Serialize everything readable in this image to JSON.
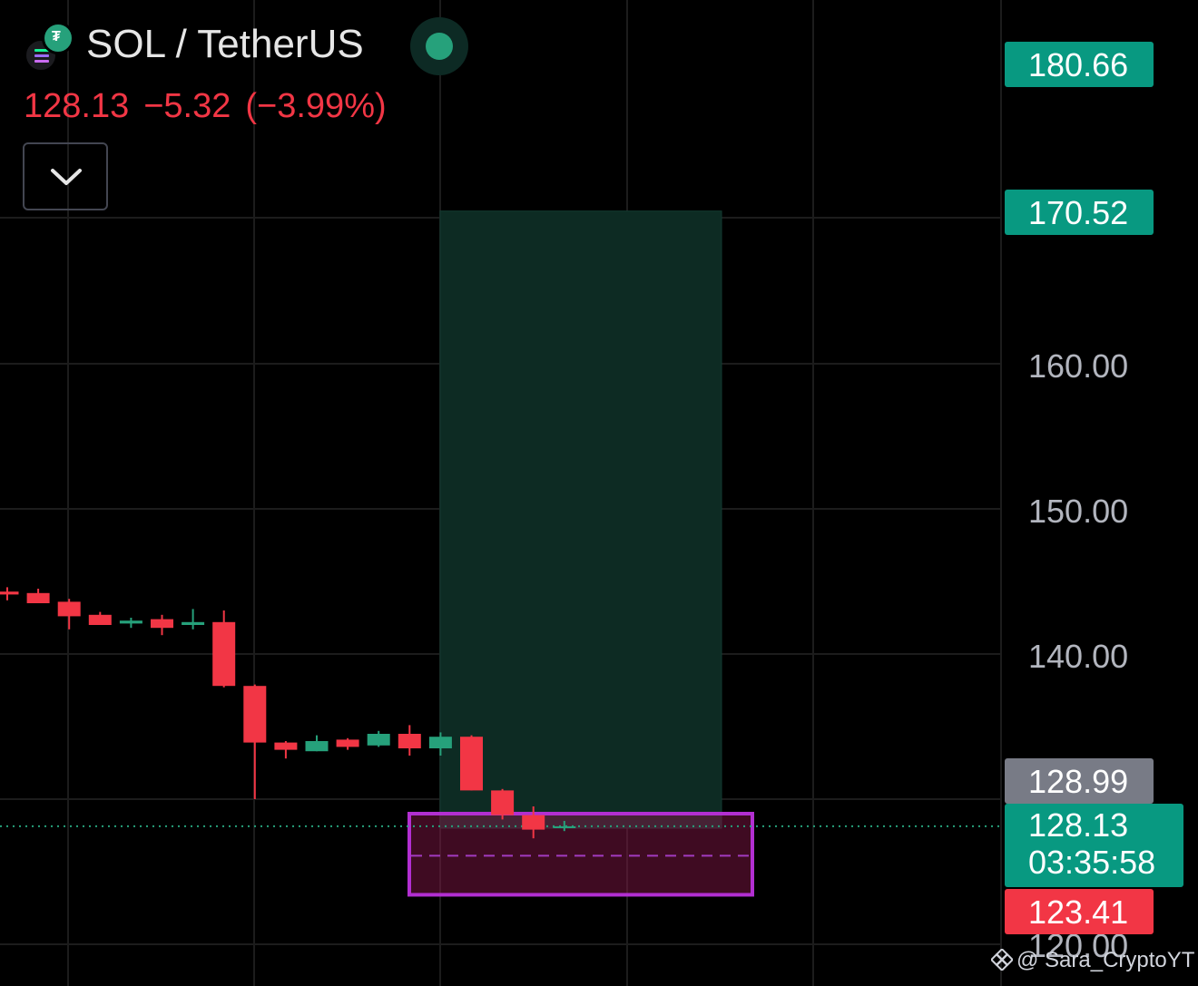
{
  "symbol": {
    "title": "SOL / TetherUS",
    "price": "128.13",
    "change": "−5.32",
    "change_pct": "(−3.99%)",
    "base_icon": "solana-icon",
    "quote_icon": "tether-icon",
    "market_status": "open"
  },
  "price_axis": {
    "labels": [
      "160.00",
      "150.00",
      "140.00",
      "120.00"
    ]
  },
  "price_tags": {
    "target_2": "180.66",
    "target_1": "170.52",
    "high": "128.99",
    "current": "128.13",
    "countdown": "03:35:58",
    "stop": "123.41"
  },
  "colors": {
    "up": "#26a17b",
    "down": "#f23645",
    "zone_border": "#b22fd1",
    "target_zone": "#0d2b23",
    "high_tag": "#787b86"
  },
  "chart_data": {
    "type": "candlestick",
    "ylim": [
      118,
      184
    ],
    "candles": [
      {
        "o": 144.3,
        "h": 144.6,
        "l": 143.7,
        "c": 144.1
      },
      {
        "o": 144.2,
        "h": 144.5,
        "l": 143.5,
        "c": 143.5
      },
      {
        "o": 143.6,
        "h": 143.8,
        "l": 141.7,
        "c": 142.6
      },
      {
        "o": 142.7,
        "h": 142.9,
        "l": 142.0,
        "c": 142.0
      },
      {
        "o": 142.1,
        "h": 142.5,
        "l": 141.8,
        "c": 142.3
      },
      {
        "o": 142.4,
        "h": 142.7,
        "l": 141.3,
        "c": 141.8
      },
      {
        "o": 142.0,
        "h": 143.1,
        "l": 141.7,
        "c": 142.2
      },
      {
        "o": 142.2,
        "h": 143.0,
        "l": 137.7,
        "c": 137.8
      },
      {
        "o": 137.8,
        "h": 137.9,
        "l": 130.0,
        "c": 133.9
      },
      {
        "o": 133.9,
        "h": 134.0,
        "l": 132.8,
        "c": 133.4
      },
      {
        "o": 133.3,
        "h": 134.4,
        "l": 133.3,
        "c": 134.0
      },
      {
        "o": 134.1,
        "h": 134.2,
        "l": 133.4,
        "c": 133.6
      },
      {
        "o": 133.7,
        "h": 134.7,
        "l": 133.6,
        "c": 134.5
      },
      {
        "o": 134.5,
        "h": 135.1,
        "l": 133.0,
        "c": 133.5
      },
      {
        "o": 133.5,
        "h": 134.6,
        "l": 133.0,
        "c": 134.3
      },
      {
        "o": 134.3,
        "h": 134.4,
        "l": 130.6,
        "c": 130.6
      },
      {
        "o": 130.6,
        "h": 130.7,
        "l": 128.6,
        "c": 128.9
      },
      {
        "o": 128.9,
        "h": 129.5,
        "l": 127.3,
        "c": 127.9
      },
      {
        "o": 128.0,
        "h": 128.5,
        "l": 127.8,
        "c": 128.13
      }
    ],
    "target_zone": {
      "from": 128.0,
      "to": 170.52
    },
    "entry_zone": {
      "top": 129.0,
      "bottom": 123.41,
      "mid": 126.1
    },
    "last_price": 128.13
  },
  "watermark": "@ Sara_CryptoYT"
}
